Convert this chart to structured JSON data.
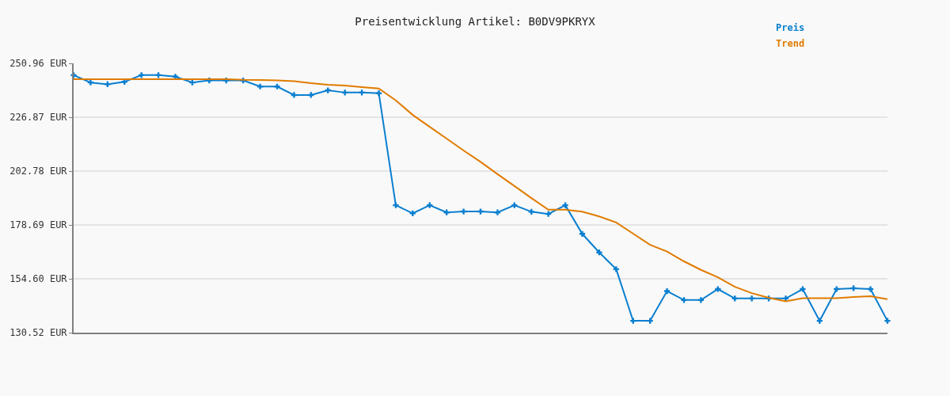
{
  "chart_data": {
    "type": "line",
    "title": "Preisentwicklung Artikel: B0DV9PKRYX",
    "categories": [
      null,
      null,
      null,
      null,
      null,
      null,
      null,
      null,
      null,
      null,
      null,
      null,
      null,
      null,
      null,
      null,
      null,
      null,
      null,
      null,
      null,
      null,
      null,
      null,
      null,
      null,
      null,
      null,
      null,
      null,
      null,
      null,
      null,
      null,
      null,
      null,
      null,
      null,
      null,
      null,
      null,
      null,
      null,
      null,
      null,
      null,
      null,
      null,
      null
    ],
    "series": [
      {
        "name": "Preis",
        "color": "#0a7fd0",
        "marker": "cross",
        "values": [
          245.7,
          242.4,
          241.6,
          242.7,
          245.7,
          245.7,
          245.0,
          242.4,
          243.3,
          243.3,
          243.3,
          240.6,
          240.6,
          236.8,
          236.8,
          238.9,
          237.9,
          237.9,
          237.6,
          187.5,
          183.9,
          187.5,
          184.3,
          184.7,
          184.7,
          184.3,
          187.5,
          184.6,
          183.6,
          187.5,
          174.7,
          166.4,
          158.9,
          135.8,
          135.8,
          149.1,
          145.1,
          145.1,
          150.0,
          145.8,
          145.8,
          145.8,
          145.8,
          150.0,
          135.8,
          150.0,
          150.4,
          150.0,
          135.8
        ]
      },
      {
        "name": "Trend",
        "color": "#e07b00",
        "marker": "none",
        "values": [
          243.9,
          243.9,
          243.9,
          243.9,
          243.9,
          243.9,
          243.9,
          243.9,
          243.9,
          243.9,
          243.6,
          243.5,
          243.3,
          243.0,
          242.1,
          241.4,
          241.0,
          240.3,
          239.7,
          234.4,
          227.9,
          222.6,
          217.3,
          212.0,
          206.9,
          201.4,
          196.1,
          190.7,
          185.5,
          185.5,
          184.6,
          182.5,
          179.8,
          174.8,
          169.8,
          166.8,
          162.4,
          158.6,
          155.3,
          151.0,
          148.2,
          146.1,
          144.5,
          145.9,
          145.9,
          145.9,
          146.5,
          146.8,
          145.5
        ]
      }
    ],
    "ylim": [
      130.52,
      250.96
    ],
    "yticks": [
      {
        "value": 130.52,
        "label": "130.52 EUR"
      },
      {
        "value": 154.6,
        "label": "154.60 EUR"
      },
      {
        "value": 178.69,
        "label": "178.69 EUR"
      },
      {
        "value": 202.78,
        "label": "202.78 EUR"
      },
      {
        "value": 226.87,
        "label": "226.87 EUR"
      },
      {
        "value": 250.96,
        "label": "250.96 EUR"
      }
    ],
    "grid": "y",
    "legend": "top right",
    "line_style": "solid",
    "tick_labels": "y"
  }
}
